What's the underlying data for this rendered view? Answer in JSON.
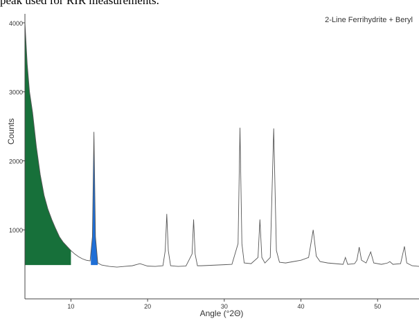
{
  "caption": "peak used for RIR measurements.",
  "chart_data": {
    "type": "line",
    "annotation": "2-Line Ferrihydrite + Beryl",
    "xlabel": "Angle (°2Θ)",
    "ylabel": "Counts",
    "x": [
      4.0,
      4.3,
      4.6,
      5.0,
      5.5,
      6.0,
      6.5,
      7.0,
      7.5,
      8.0,
      8.5,
      9.0,
      9.5,
      10.0,
      10.5,
      11.0,
      11.5,
      12.0,
      12.5,
      12.8,
      13.0,
      13.2,
      13.5,
      14.0,
      15,
      16,
      17,
      18,
      19,
      20,
      21,
      22,
      22.3,
      22.5,
      22.7,
      23,
      24,
      25,
      25.8,
      26.0,
      26.2,
      26.5,
      27,
      28,
      29,
      30,
      31,
      31.8,
      32.05,
      32.3,
      32.6,
      33.5,
      34.4,
      34.65,
      34.9,
      35.3,
      36.0,
      36.45,
      36.8,
      37.2,
      38,
      39,
      40,
      41,
      41.6,
      42,
      42.5,
      43.5,
      44.5,
      45.5,
      45.8,
      46.1,
      47,
      47.3,
      47.6,
      47.9,
      48.5,
      49.1,
      49.5,
      50.5,
      51.3,
      51.6,
      52,
      53,
      53.5,
      53.8,
      54.5,
      55.4
    ],
    "values": [
      4000,
      3400,
      3000,
      2700,
      2200,
      1800,
      1500,
      1300,
      1150,
      1020,
      900,
      820,
      760,
      700,
      650,
      610,
      580,
      560,
      550,
      900,
      2420,
      900,
      520,
      490,
      470,
      460,
      470,
      480,
      510,
      475,
      470,
      480,
      700,
      1230,
      700,
      480,
      470,
      475,
      650,
      1150,
      650,
      480,
      480,
      485,
      490,
      495,
      500,
      800,
      2480,
      800,
      520,
      510,
      600,
      1150,
      600,
      520,
      600,
      2470,
      700,
      530,
      520,
      540,
      560,
      600,
      1000,
      620,
      540,
      520,
      510,
      500,
      600,
      500,
      510,
      560,
      750,
      560,
      520,
      680,
      520,
      500,
      520,
      540,
      500,
      510,
      760,
      520,
      480,
      470
    ],
    "color": "#555555",
    "fills": [
      {
        "x0": 4.0,
        "x1": 10.0,
        "base": 490,
        "color": "#17703a"
      },
      {
        "x0": 12.6,
        "x1": 13.5,
        "base": 490,
        "color": "#1f6fd6"
      }
    ],
    "xlim": [
      4,
      55.4
    ],
    "xticks": [
      10,
      20,
      30,
      40,
      50
    ],
    "ylim": [
      0,
      4130
    ],
    "yticks": [
      1000,
      2000,
      3000,
      4000
    ]
  }
}
